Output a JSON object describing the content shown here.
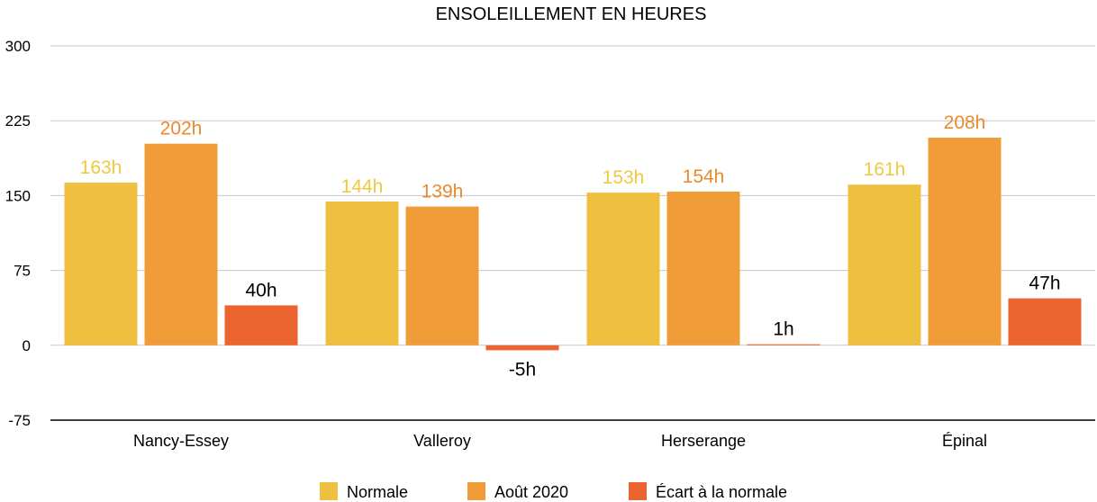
{
  "chart_data": {
    "type": "bar",
    "title": "ENSOLEILLEMENT EN HEURES",
    "xlabel": "",
    "ylabel": "",
    "ylim": [
      -75,
      300
    ],
    "yticks": [
      300,
      225,
      150,
      75,
      0,
      -75
    ],
    "grid": true,
    "legend_position": "bottom",
    "categories": [
      "Nancy-Essey",
      "Valleroy",
      "Herserange",
      "Épinal"
    ],
    "series": [
      {
        "name": "Normale",
        "color": "#EFBF40",
        "label_color": "#F0C840",
        "values": [
          163,
          144,
          153,
          161
        ],
        "labels": [
          "163h",
          "144h",
          "153h",
          "161h"
        ]
      },
      {
        "name": "Août 2020",
        "color": "#F09C38",
        "label_color": "#E98A2E",
        "values": [
          202,
          139,
          154,
          208
        ],
        "labels": [
          "202h",
          "139h",
          "154h",
          "208h"
        ]
      },
      {
        "name": "Écart à la normale",
        "color": "#EC6530",
        "label_color": "#000000",
        "values": [
          40,
          -5,
          1,
          47
        ],
        "labels": [
          "40h",
          "-5h",
          "1h",
          "47h"
        ]
      }
    ]
  }
}
